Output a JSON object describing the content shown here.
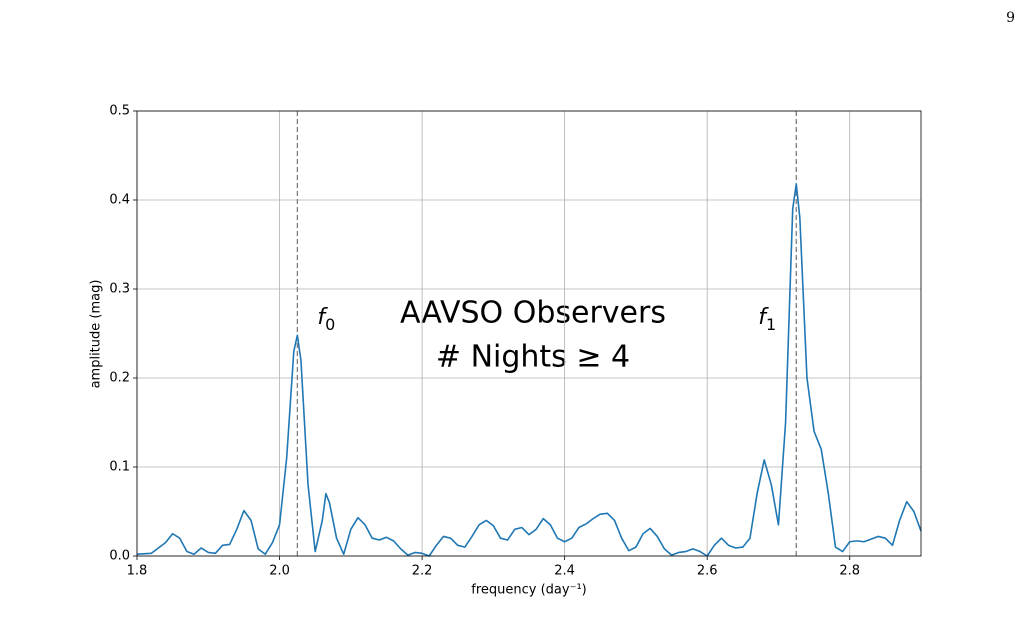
{
  "page_number": "9",
  "chart_data": {
    "type": "line",
    "x_label": "frequency (day⁻¹)",
    "y_label": "amplitude (mag)",
    "annotations": [
      "AAVSO Observers",
      "# Nights ≥ 4"
    ],
    "markers": [
      {
        "x": 2.025,
        "symbol": "f",
        "subscript": "0"
      },
      {
        "x": 2.725,
        "symbol": "f",
        "subscript": "1"
      }
    ],
    "xlim": [
      1.8,
      2.9
    ],
    "ylim": [
      0,
      0.5
    ],
    "xticks": [
      1.8,
      {
        "value": 2,
        "label": "2.0"
      },
      2.2,
      2.4,
      2.6,
      2.8
    ],
    "yticks": [
      {
        "value": 0,
        "label": "0.0"
      },
      0.1,
      0.2,
      0.3,
      0.4,
      0.5
    ],
    "grid": true,
    "series": [
      {
        "color": "#1f77b4",
        "x": [
          1.8,
          1.82,
          1.84,
          1.85,
          1.86,
          1.87,
          1.88,
          1.89,
          1.9,
          1.91,
          1.92,
          1.93,
          1.94,
          1.95,
          1.96,
          1.97,
          1.98,
          1.99,
          2.0,
          2.01,
          2.02,
          2.025,
          2.03,
          2.04,
          2.05,
          2.06,
          2.065,
          2.07,
          2.08,
          2.09,
          2.1,
          2.11,
          2.12,
          2.13,
          2.14,
          2.15,
          2.16,
          2.17,
          2.18,
          2.19,
          2.2,
          2.21,
          2.22,
          2.23,
          2.24,
          2.25,
          2.26,
          2.27,
          2.28,
          2.29,
          2.3,
          2.31,
          2.32,
          2.33,
          2.34,
          2.35,
          2.36,
          2.37,
          2.38,
          2.39,
          2.4,
          2.41,
          2.42,
          2.43,
          2.44,
          2.45,
          2.46,
          2.47,
          2.48,
          2.49,
          2.5,
          2.51,
          2.52,
          2.53,
          2.54,
          2.55,
          2.56,
          2.57,
          2.58,
          2.59,
          2.6,
          2.61,
          2.62,
          2.63,
          2.64,
          2.65,
          2.66,
          2.67,
          2.68,
          2.69,
          2.7,
          2.71,
          2.72,
          2.725,
          2.73,
          2.74,
          2.75,
          2.76,
          2.77,
          2.78,
          2.79,
          2.8,
          2.81,
          2.82,
          2.83,
          2.84,
          2.85,
          2.86,
          2.87,
          2.88,
          2.89,
          2.9
        ],
        "values": [
          0.002,
          0.003,
          0.015,
          0.025,
          0.02,
          0.005,
          0.002,
          0.009,
          0.004,
          0.003,
          0.012,
          0.013,
          0.03,
          0.051,
          0.04,
          0.008,
          0.002,
          0.015,
          0.035,
          0.11,
          0.23,
          0.248,
          0.22,
          0.08,
          0.005,
          0.04,
          0.07,
          0.06,
          0.02,
          0.002,
          0.03,
          0.043,
          0.035,
          0.02,
          0.018,
          0.021,
          0.017,
          0.008,
          0.001,
          0.004,
          0.003,
          0.0,
          0.012,
          0.022,
          0.02,
          0.012,
          0.01,
          0.022,
          0.035,
          0.04,
          0.034,
          0.02,
          0.018,
          0.03,
          0.032,
          0.024,
          0.03,
          0.042,
          0.035,
          0.02,
          0.016,
          0.02,
          0.032,
          0.036,
          0.042,
          0.047,
          0.048,
          0.04,
          0.02,
          0.006,
          0.01,
          0.025,
          0.031,
          0.022,
          0.008,
          0.001,
          0.004,
          0.005,
          0.008,
          0.005,
          0.0,
          0.012,
          0.02,
          0.012,
          0.009,
          0.01,
          0.02,
          0.07,
          0.108,
          0.08,
          0.035,
          0.15,
          0.39,
          0.418,
          0.38,
          0.2,
          0.14,
          0.12,
          0.07,
          0.01,
          0.005,
          0.016,
          0.017,
          0.016,
          0.019,
          0.022,
          0.02,
          0.012,
          0.04,
          0.061,
          0.05,
          0.028
        ]
      }
    ]
  }
}
